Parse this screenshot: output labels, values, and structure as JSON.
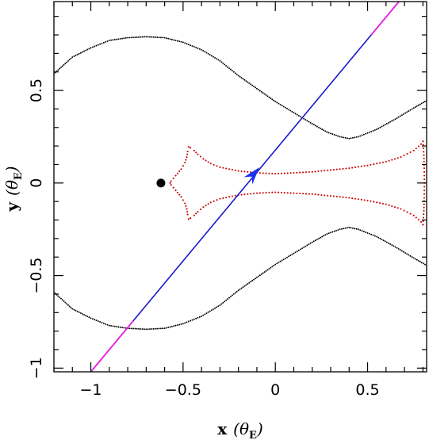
{
  "chart_data": {
    "type": "line",
    "title": "",
    "xlabel": {
      "prefix": "x",
      "open": "(",
      "symbol": "θ",
      "subscript": "E",
      "close": ")"
    },
    "ylabel": {
      "prefix": "y",
      "open": "(",
      "symbol": "θ",
      "subscript": "E",
      "close": ")"
    },
    "xlim": [
      -1.2,
      0.82
    ],
    "ylim": [
      -1.02,
      0.98
    ],
    "x_ticks": [
      {
        "value": -1,
        "label": "−1"
      },
      {
        "value": -0.5,
        "label": "−0.5"
      },
      {
        "value": 0,
        "label": "0"
      },
      {
        "value": 0.5,
        "label": "0.5"
      }
    ],
    "y_ticks": [
      {
        "value": -1,
        "label": "−1"
      },
      {
        "value": -0.5,
        "label": "−0.5"
      },
      {
        "value": 0,
        "label": "0"
      },
      {
        "value": 0.5,
        "label": "0.5"
      }
    ],
    "grid": false,
    "legend": "none",
    "colors": {
      "critical_curve": "#000000",
      "caustic": "#cc0000",
      "trajectory": "#1a1acc",
      "trajectory_ends": "#ee22dd",
      "arrow": "#1a33ee",
      "lens_point": "#000000"
    },
    "series": [
      {
        "kind": "critical-curve-upper",
        "style": "dotted",
        "points": [
          [
            -1.2,
            0.59
          ],
          [
            -1.1,
            0.68
          ],
          [
            -1.0,
            0.73
          ],
          [
            -0.9,
            0.77
          ],
          [
            -0.8,
            0.785
          ],
          [
            -0.7,
            0.79
          ],
          [
            -0.6,
            0.785
          ],
          [
            -0.5,
            0.76
          ],
          [
            -0.4,
            0.72
          ],
          [
            -0.3,
            0.66
          ],
          [
            -0.2,
            0.58
          ],
          [
            -0.1,
            0.51
          ],
          [
            0.0,
            0.44
          ],
          [
            0.1,
            0.38
          ],
          [
            0.2,
            0.32
          ],
          [
            0.28,
            0.275
          ],
          [
            0.35,
            0.25
          ],
          [
            0.4,
            0.24
          ],
          [
            0.45,
            0.25
          ],
          [
            0.55,
            0.29
          ],
          [
            0.65,
            0.345
          ],
          [
            0.75,
            0.405
          ],
          [
            0.82,
            0.445
          ]
        ]
      },
      {
        "kind": "critical-curve-lower",
        "style": "dotted",
        "points": [
          [
            -1.2,
            -0.59
          ],
          [
            -1.1,
            -0.68
          ],
          [
            -1.0,
            -0.73
          ],
          [
            -0.9,
            -0.77
          ],
          [
            -0.8,
            -0.785
          ],
          [
            -0.7,
            -0.79
          ],
          [
            -0.6,
            -0.785
          ],
          [
            -0.5,
            -0.76
          ],
          [
            -0.4,
            -0.72
          ],
          [
            -0.3,
            -0.66
          ],
          [
            -0.2,
            -0.58
          ],
          [
            -0.1,
            -0.51
          ],
          [
            0.0,
            -0.44
          ],
          [
            0.1,
            -0.38
          ],
          [
            0.2,
            -0.32
          ],
          [
            0.28,
            -0.275
          ],
          [
            0.35,
            -0.25
          ],
          [
            0.4,
            -0.24
          ],
          [
            0.45,
            -0.25
          ],
          [
            0.55,
            -0.29
          ],
          [
            0.65,
            -0.345
          ],
          [
            0.75,
            -0.405
          ],
          [
            0.82,
            -0.445
          ]
        ]
      },
      {
        "kind": "caustic",
        "style": "dotted",
        "points": [
          [
            -0.47,
            0.195
          ],
          [
            -0.46,
            0.19
          ],
          [
            -0.44,
            0.175
          ],
          [
            -0.42,
            0.155
          ],
          [
            -0.39,
            0.13
          ],
          [
            -0.35,
            0.105
          ],
          [
            -0.3,
            0.085
          ],
          [
            -0.2,
            0.065
          ],
          [
            -0.1,
            0.055
          ],
          [
            0.0,
            0.05
          ],
          [
            0.1,
            0.055
          ],
          [
            0.2,
            0.06
          ],
          [
            0.3,
            0.07
          ],
          [
            0.4,
            0.08
          ],
          [
            0.5,
            0.095
          ],
          [
            0.6,
            0.115
          ],
          [
            0.68,
            0.14
          ],
          [
            0.75,
            0.175
          ],
          [
            0.79,
            0.21
          ],
          [
            0.8,
            0.225
          ],
          [
            0.8,
            0.225
          ],
          [
            0.805,
            0.15
          ],
          [
            0.807,
            0.08
          ],
          [
            0.808,
            0.0
          ],
          [
            0.807,
            -0.08
          ],
          [
            0.805,
            -0.15
          ],
          [
            0.8,
            -0.225
          ],
          [
            0.8,
            -0.225
          ],
          [
            0.79,
            -0.21
          ],
          [
            0.75,
            -0.175
          ],
          [
            0.68,
            -0.14
          ],
          [
            0.6,
            -0.115
          ],
          [
            0.5,
            -0.095
          ],
          [
            0.4,
            -0.08
          ],
          [
            0.3,
            -0.07
          ],
          [
            0.2,
            -0.06
          ],
          [
            0.1,
            -0.055
          ],
          [
            0.0,
            -0.05
          ],
          [
            -0.1,
            -0.055
          ],
          [
            -0.2,
            -0.065
          ],
          [
            -0.3,
            -0.085
          ],
          [
            -0.35,
            -0.105
          ],
          [
            -0.39,
            -0.13
          ],
          [
            -0.42,
            -0.155
          ],
          [
            -0.44,
            -0.175
          ],
          [
            -0.46,
            -0.19
          ],
          [
            -0.47,
            -0.195
          ],
          [
            -0.475,
            -0.17
          ],
          [
            -0.48,
            -0.14
          ],
          [
            -0.49,
            -0.11
          ],
          [
            -0.51,
            -0.075
          ],
          [
            -0.54,
            -0.04
          ],
          [
            -0.565,
            -0.01
          ],
          [
            -0.57,
            0.0
          ],
          [
            -0.565,
            0.01
          ],
          [
            -0.54,
            0.04
          ],
          [
            -0.51,
            0.075
          ],
          [
            -0.49,
            0.11
          ],
          [
            -0.48,
            0.14
          ],
          [
            -0.475,
            0.17
          ],
          [
            -0.47,
            0.195
          ]
        ]
      },
      {
        "kind": "trajectory",
        "style": "solid",
        "points": [
          [
            -1.0,
            -1.02
          ],
          [
            0.67,
            0.98
          ]
        ]
      }
    ],
    "trajectory_end_segments": [
      [
        [
          -1.0,
          -1.02
        ],
        [
          -0.77,
          -0.745
        ]
      ],
      [
        [
          0.52,
          0.8
        ],
        [
          0.67,
          0.98
        ]
      ]
    ],
    "arrow": {
      "x": -0.12,
      "y": 0.045,
      "direction": [
        0.64,
        0.77
      ]
    },
    "lens_point": {
      "x": -0.62,
      "y": 0.0
    }
  }
}
